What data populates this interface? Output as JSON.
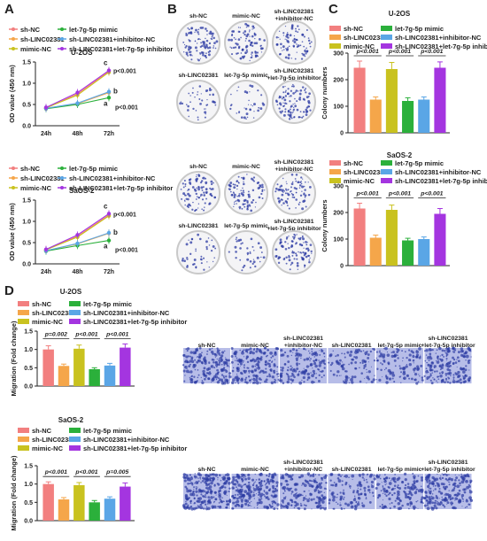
{
  "panels": {
    "a": "A",
    "b": "B",
    "c": "C",
    "d": "D"
  },
  "colors": {
    "sh_nc": "#f27f7f",
    "sh_linc": "#f5a64a",
    "mimic_nc": "#c9c21f",
    "mimic": "#2bb03b",
    "inh_nc": "#5aa6e6",
    "combo": "#a435e0",
    "dish_rim": "#c9c9c9",
    "dots": "#2b3aa3",
    "membrane": "#b7bde8"
  },
  "legend_labels": {
    "sh_nc": "sh-NC",
    "sh_linc": "sh-LINC02381",
    "mimic_nc": "mimic-NC",
    "mimic": "let-7g-5p mimic",
    "inh_nc": "sh-LINC02381+inhibitor-NC",
    "combo": "sh-LINC02381+let-7g-5p inhibitor"
  },
  "chart_data": [
    {
      "type": "line",
      "cell": "U-2OS",
      "ylabel": "OD value (450 nm)",
      "categories": [
        "24h",
        "48h",
        "72h"
      ],
      "yticks": [
        "0.0",
        "0.5",
        "1.0",
        "1.5"
      ],
      "ylim": [
        0,
        1.5
      ],
      "series": [
        {
          "name": "sh-NC",
          "values": [
            0.42,
            0.75,
            1.28
          ]
        },
        {
          "name": "sh-LINC02381",
          "values": [
            0.41,
            0.52,
            0.78
          ]
        },
        {
          "name": "mimic-NC",
          "values": [
            0.42,
            0.72,
            1.26
          ]
        },
        {
          "name": "let-7g-5p mimic",
          "values": [
            0.4,
            0.5,
            0.66
          ]
        },
        {
          "name": "sh-LINC02381+inhibitor-NC",
          "values": [
            0.41,
            0.53,
            0.8
          ]
        },
        {
          "name": "sh-LINC02381+let-7g-5p inhibitor",
          "values": [
            0.43,
            0.78,
            1.3
          ]
        }
      ],
      "annotations": {
        "c": "c",
        "b": "b",
        "a": "a",
        "p1": "p<0.001",
        "p2": "p<0.001"
      }
    },
    {
      "type": "line",
      "cell": "SaOS-2",
      "ylabel": "OD value (450 nm)",
      "categories": [
        "24h",
        "48h",
        "72h"
      ],
      "yticks": [
        "0.0",
        "0.5",
        "1.0",
        "1.5"
      ],
      "ylim": [
        0,
        1.5
      ],
      "series": [
        {
          "name": "sh-NC",
          "values": [
            0.33,
            0.65,
            1.15
          ]
        },
        {
          "name": "sh-LINC02381",
          "values": [
            0.31,
            0.47,
            0.72
          ]
        },
        {
          "name": "mimic-NC",
          "values": [
            0.33,
            0.63,
            1.13
          ]
        },
        {
          "name": "let-7g-5p mimic",
          "values": [
            0.3,
            0.43,
            0.55
          ]
        },
        {
          "name": "sh-LINC02381+inhibitor-NC",
          "values": [
            0.31,
            0.48,
            0.73
          ]
        },
        {
          "name": "sh-LINC02381+let-7g-5p inhibitor",
          "values": [
            0.34,
            0.68,
            1.18
          ]
        }
      ],
      "annotations": {
        "c": "c",
        "b": "b",
        "a": "a",
        "p1": "p<0.001",
        "p2": "p<0.001"
      }
    },
    {
      "type": "bar",
      "cell": "U-2OS",
      "ylabel": "Colony numbers",
      "categories": [
        "sh-NC",
        "sh-LINC02381",
        "mimic-NC",
        "let-7g-5p mimic",
        "sh-LINC02381+inhibitor-NC",
        "sh-LINC02381+let-7g-5p inhibitor"
      ],
      "values": [
        245,
        125,
        240,
        120,
        125,
        245
      ],
      "errors": [
        25,
        10,
        25,
        12,
        10,
        22
      ],
      "yticks": [
        "0",
        "100",
        "200",
        "300"
      ],
      "ylim": [
        0,
        300
      ],
      "pvalues": [
        "p<0.001",
        "p<0.001",
        "p<0.001"
      ]
    },
    {
      "type": "bar",
      "cell": "SaOS-2",
      "ylabel": "Colony numbers",
      "categories": [
        "sh-NC",
        "sh-LINC02381",
        "mimic-NC",
        "let-7g-5p mimic",
        "sh-LINC02381+inhibitor-NC",
        "sh-LINC02381+let-7g-5p inhibitor"
      ],
      "values": [
        215,
        105,
        210,
        95,
        100,
        195
      ],
      "errors": [
        20,
        10,
        18,
        8,
        8,
        20
      ],
      "yticks": [
        "0",
        "100",
        "200",
        "300"
      ],
      "ylim": [
        0,
        300
      ],
      "pvalues": [
        "p<0.001",
        "p<0.001",
        "p<0.001"
      ]
    },
    {
      "type": "bar",
      "cell": "U-2OS",
      "ylabel": "Migration (Fold change)",
      "categories": [
        "sh-NC",
        "sh-LINC02381",
        "mimic-NC",
        "let-7g-5p mimic",
        "sh-LINC02381+inhibitor-NC",
        "sh-LINC02381+let-7g-5p inhibitor"
      ],
      "values": [
        1.0,
        0.55,
        1.02,
        0.46,
        0.56,
        1.05
      ],
      "errors": [
        0.1,
        0.05,
        0.1,
        0.04,
        0.06,
        0.1
      ],
      "yticks": [
        "0.0",
        "0.5",
        "1.0",
        "1.5"
      ],
      "ylim": [
        0,
        1.5
      ],
      "pvalues": [
        "p=0.002",
        "p<0.001",
        "p<0.001"
      ]
    },
    {
      "type": "bar",
      "cell": "SaOS-2",
      "ylabel": "Migration (Fold change)",
      "categories": [
        "sh-NC",
        "sh-LINC02381",
        "mimic-NC",
        "let-7g-5p mimic",
        "sh-LINC02381+inhibitor-NC",
        "sh-LINC02381+let-7g-5p inhibitor"
      ],
      "values": [
        1.0,
        0.58,
        0.97,
        0.5,
        0.6,
        0.93
      ],
      "errors": [
        0.06,
        0.05,
        0.07,
        0.05,
        0.05,
        0.1
      ],
      "yticks": [
        "0.0",
        "0.5",
        "1.0",
        "1.5"
      ],
      "ylim": [
        0,
        1.5
      ],
      "pvalues": [
        "p<0.001",
        "p<0.001",
        "p=0.005"
      ]
    }
  ],
  "colony_image_labels": [
    [
      "sh-NC",
      "mimic-NC",
      "sh-LINC02381\n+inhibitor-NC"
    ],
    [
      "sh-LINC02381",
      "let-7g-5p mimic",
      "sh-LINC02381\n+let-7g-5p inhibitor"
    ]
  ],
  "migration_image_labels": [
    "sh-NC",
    "mimic-NC",
    "sh-LINC02381\n+inhibitor-NC",
    "sh-LINC02381",
    "let-7g-5p mimic",
    "sh-LINC02381\n+let-7g-5p inhibitor"
  ]
}
